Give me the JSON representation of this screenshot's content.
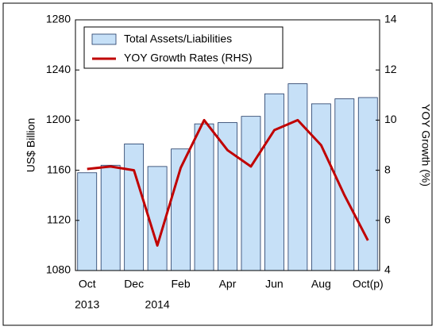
{
  "chart_data": {
    "type": "bar_line",
    "categories": [
      "Oct",
      null,
      "Dec",
      null,
      "Feb",
      null,
      "Apr",
      null,
      "Jun",
      null,
      "Aug",
      null,
      "Oct(p)"
    ],
    "year_labels": [
      "2013",
      "2014"
    ],
    "series": [
      {
        "name": "Total Assets/Liabilities",
        "color": "#c6e0f7",
        "type": "bar",
        "values": [
          1158,
          1164,
          1181,
          1163,
          1177,
          1197,
          1198,
          1203,
          1221,
          1229,
          1213,
          1217,
          1218
        ]
      },
      {
        "name": "YOY Growth Rates (RHS)",
        "color": "#c00000",
        "type": "line",
        "axis": "y2",
        "values": [
          8.05,
          8.15,
          8.0,
          5.0,
          8.1,
          10.0,
          8.8,
          8.15,
          9.6,
          10.0,
          9.0,
          7.0,
          5.2
        ]
      }
    ],
    "ylabel": "US$ Billion",
    "y2label": "YOY Growth (%)",
    "ylim": [
      1080,
      1280
    ],
    "yticks": [
      1080,
      1120,
      1160,
      1200,
      1240,
      1280
    ],
    "y2lim": [
      4,
      14
    ],
    "y2ticks": [
      4,
      6,
      8,
      10,
      12,
      14
    ],
    "grid": false,
    "legend": "upper left"
  }
}
